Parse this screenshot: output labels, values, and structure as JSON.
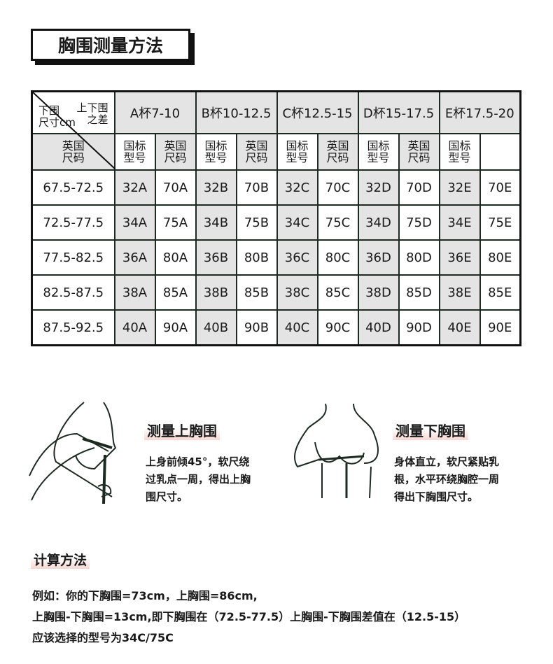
{
  "title": "胸围测量方法",
  "table": {
    "corner_top": [
      "上下围",
      "之差"
    ],
    "corner_bottom": [
      "下围",
      "尺寸cm"
    ],
    "cups": [
      "A杯7-10",
      "B杯10-12.5",
      "C杯12.5-15",
      "D杯15-17.5",
      "E杯17.5-20"
    ],
    "sub": [
      [
        "英国",
        "尺码"
      ],
      [
        "国标",
        "型号"
      ]
    ],
    "rows": [
      [
        "67.5-72.5",
        "32A",
        "70A",
        "32B",
        "70B",
        "32C",
        "70C",
        "32D",
        "70D",
        "32E",
        "70E"
      ],
      [
        "72.5-77.5",
        "34A",
        "75A",
        "34B",
        "75B",
        "34C",
        "75C",
        "34D",
        "75D",
        "34E",
        "75E"
      ],
      [
        "77.5-82.5",
        "36A",
        "80A",
        "36B",
        "80B",
        "36C",
        "80C",
        "36D",
        "80D",
        "36E",
        "80E"
      ],
      [
        "82.5-87.5",
        "38A",
        "85A",
        "38B",
        "85B",
        "38C",
        "85C",
        "38D",
        "85D",
        "38E",
        "85E"
      ],
      [
        "87.5-92.5",
        "40A",
        "90A",
        "40B",
        "90B",
        "40C",
        "90C",
        "40D",
        "90D",
        "40E",
        "90E"
      ]
    ]
  },
  "upper": {
    "title": "测量上胸围",
    "lines": [
      "上身前倾45°，软尺绕",
      "过乳点一周，得出上胸",
      "围尺寸。"
    ]
  },
  "lower": {
    "title": "测量下胸围",
    "lines": [
      "身体直立，软尺紧贴乳",
      "根，水平环绕胸腔一周",
      "得出下胸围尺寸。"
    ]
  },
  "calc": {
    "title": "计算方法",
    "lines": [
      "例如：你的下胸围=73cm，上胸围=86cm,",
      "上胸围-下胸围=13cm,即下胸围在（72.5-77.5）上胸围-下胸围差值在（12.5-15）",
      "应该选择的型号为34C/75C"
    ]
  },
  "colors": {
    "line": "#1d2a22",
    "gray": "#e4e4e4",
    "highlight": "#f6d7d2"
  }
}
